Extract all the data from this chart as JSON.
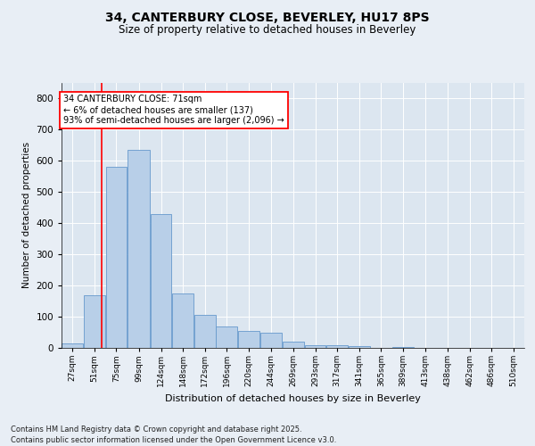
{
  "title_line1": "34, CANTERBURY CLOSE, BEVERLEY, HU17 8PS",
  "title_line2": "Size of property relative to detached houses in Beverley",
  "xlabel": "Distribution of detached houses by size in Beverley",
  "ylabel": "Number of detached properties",
  "bar_color": "#b8cfe8",
  "bar_edge_color": "#6699cc",
  "bg_color": "#dce6f0",
  "annotation_text": "34 CANTERBURY CLOSE: 71sqm\n← 6% of detached houses are smaller (137)\n93% of semi-detached houses are larger (2,096) →",
  "vline_color": "red",
  "vline_x": 71,
  "categories": [
    "27sqm",
    "51sqm",
    "75sqm",
    "99sqm",
    "124sqm",
    "148sqm",
    "172sqm",
    "196sqm",
    "220sqm",
    "244sqm",
    "269sqm",
    "293sqm",
    "317sqm",
    "341sqm",
    "365sqm",
    "389sqm",
    "413sqm",
    "438sqm",
    "462sqm",
    "486sqm",
    "510sqm"
  ],
  "bin_left_edges": [
    27,
    51,
    75,
    99,
    124,
    148,
    172,
    196,
    220,
    244,
    269,
    293,
    317,
    341,
    365,
    389,
    413,
    438,
    462,
    486,
    510
  ],
  "bin_widths": [
    24,
    24,
    24,
    25,
    24,
    24,
    24,
    24,
    24,
    25,
    24,
    24,
    24,
    24,
    24,
    24,
    25,
    24,
    24,
    24
  ],
  "values": [
    15,
    170,
    580,
    635,
    430,
    175,
    105,
    70,
    55,
    50,
    20,
    10,
    8,
    5,
    0,
    3,
    0,
    0,
    0,
    0
  ],
  "ylim": [
    0,
    850
  ],
  "yticks": [
    0,
    100,
    200,
    300,
    400,
    500,
    600,
    700,
    800
  ],
  "footer": "Contains HM Land Registry data © Crown copyright and database right 2025.\nContains public sector information licensed under the Open Government Licence v3.0.",
  "grid_color": "#ffffff",
  "fig_bg_color": "#e8eef5"
}
